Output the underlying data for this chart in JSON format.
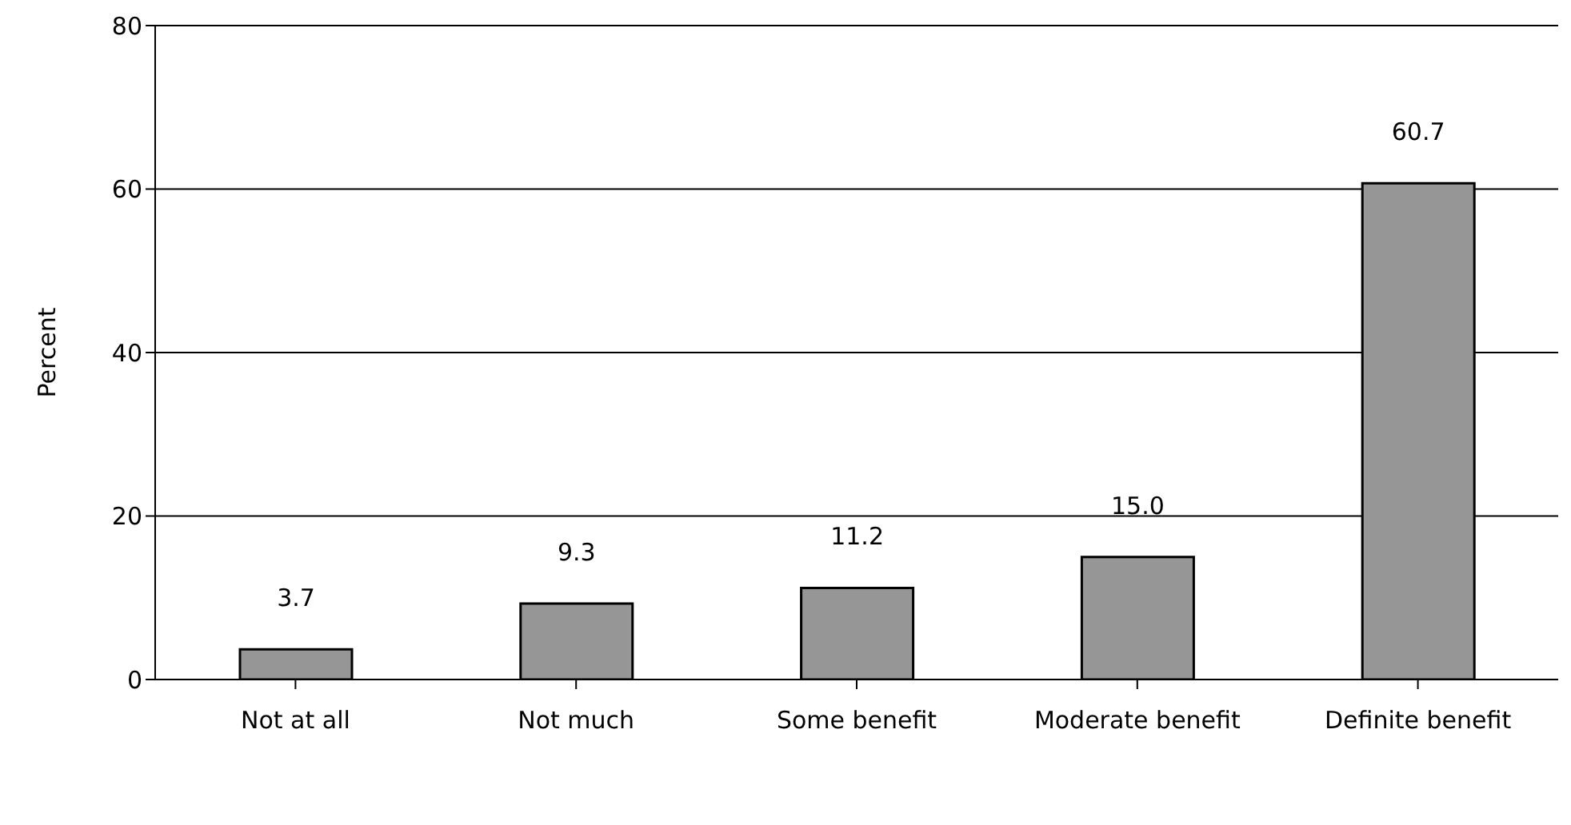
{
  "chart_data": {
    "type": "bar",
    "ylabel": "Percent",
    "categories": [
      "Not at all",
      "Not much",
      "Some benefit",
      "Moderate benefit",
      "Definite benefit"
    ],
    "values": [
      3.7,
      9.3,
      11.2,
      15.0,
      60.7
    ],
    "value_labels": [
      "3.7",
      "9.3",
      "11.2",
      "15.0",
      "60.7"
    ],
    "color": "#969696",
    "ylim": [
      0,
      80
    ],
    "yticks": [
      0,
      20,
      40,
      60,
      80
    ],
    "grid": "y"
  }
}
